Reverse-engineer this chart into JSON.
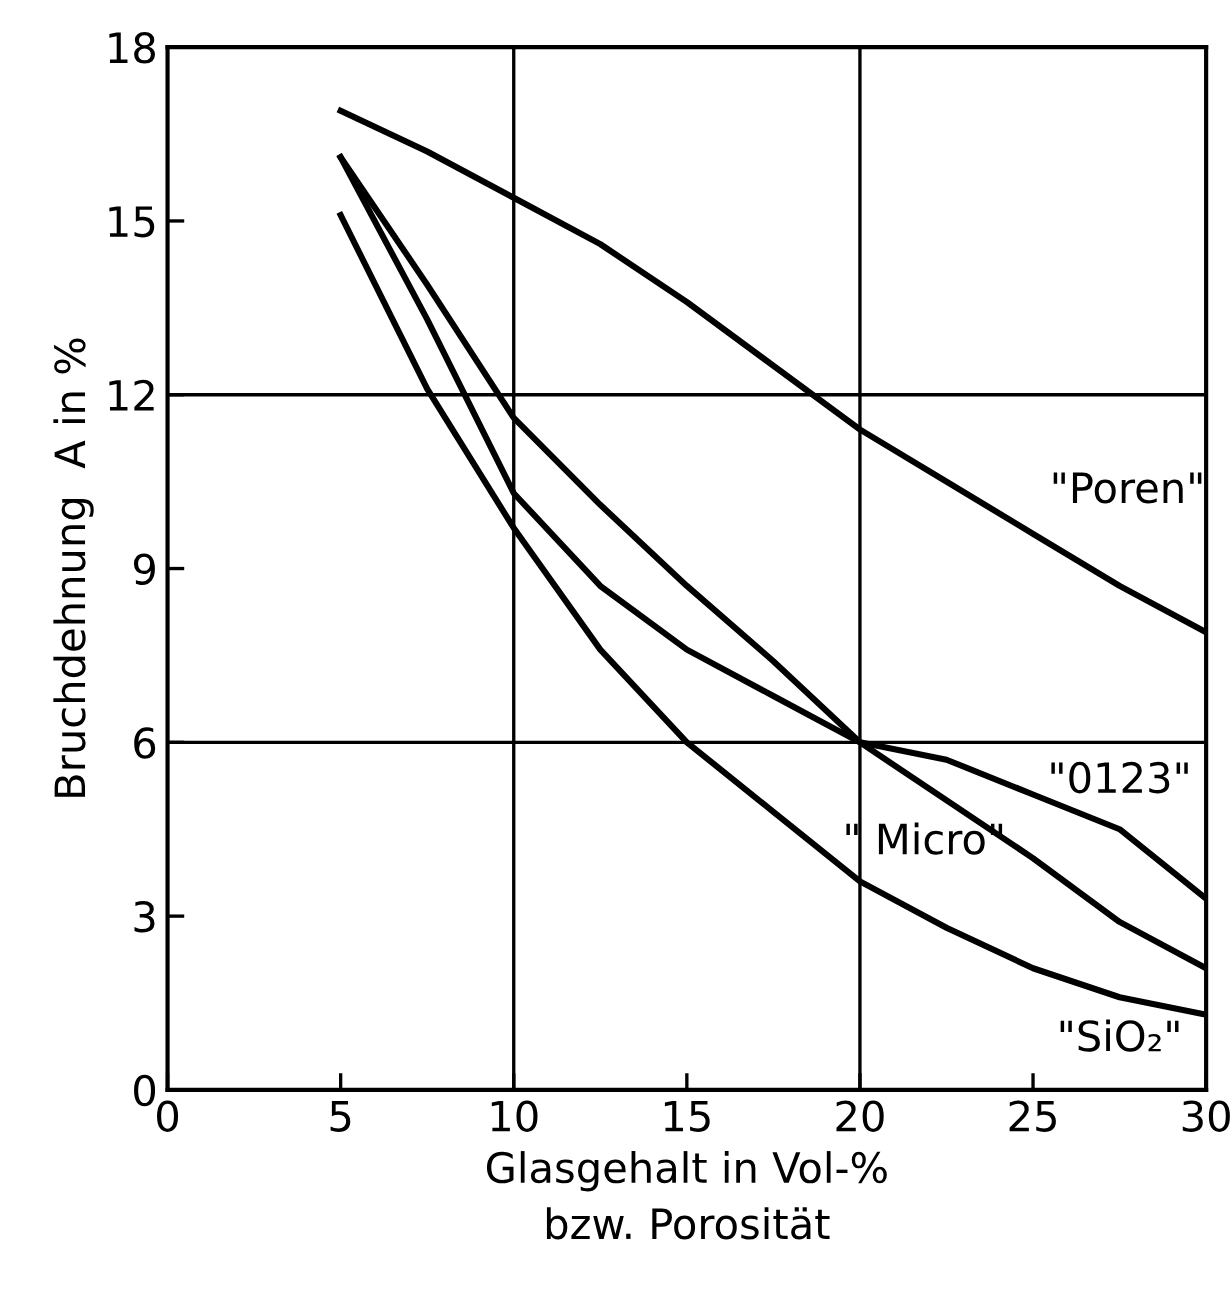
{
  "chart_data": {
    "type": "line",
    "xlabel": "Glasgehalt in Vol-%\nbzw. Porosität",
    "ylabel": "Bruchdehnung  A in %",
    "x": [
      5,
      7.5,
      10,
      12.5,
      15,
      17.5,
      20,
      22.5,
      25,
      27.5,
      30
    ],
    "series": [
      {
        "name": "\"Poren\"",
        "color": "#000000",
        "values": [
          16.9,
          16.2,
          15.4,
          14.6,
          13.6,
          12.5,
          11.4,
          10.5,
          9.6,
          8.7,
          7.9
        ]
      },
      {
        "name": "\"0123\"",
        "color": "#000000",
        "values": [
          16.1,
          13.3,
          10.3,
          8.7,
          7.6,
          6.8,
          6.0,
          5.7,
          5.1,
          4.5,
          3.3
        ]
      },
      {
        "name": "\" Micro\"",
        "color": "#000000",
        "values": [
          16.1,
          13.9,
          11.6,
          10.1,
          8.7,
          7.4,
          6.0,
          5.0,
          4.0,
          2.9,
          2.1
        ]
      },
      {
        "name": "\"SiO₂\"",
        "color": "#000000",
        "values": [
          15.1,
          12.1,
          9.7,
          7.6,
          6.0,
          4.8,
          3.6,
          2.8,
          2.1,
          1.6,
          1.3
        ]
      }
    ],
    "xlim": [
      0,
      30
    ],
    "ylim": [
      0,
      18
    ],
    "xticks": [
      0,
      5,
      10,
      15,
      20,
      25,
      30
    ],
    "yticks": [
      0,
      3,
      6,
      9,
      12,
      15,
      18
    ],
    "ref_lines": [
      {
        "axis": "x",
        "value": 10,
        "color": "#000000"
      },
      {
        "axis": "x",
        "value": 20,
        "color": "#000000"
      },
      {
        "axis": "y",
        "value": 6,
        "color": "#000000"
      },
      {
        "axis": "y",
        "value": 12,
        "color": "#000000"
      }
    ],
    "grid": false,
    "legend": false,
    "marker": "none",
    "line_style": "solid"
  }
}
